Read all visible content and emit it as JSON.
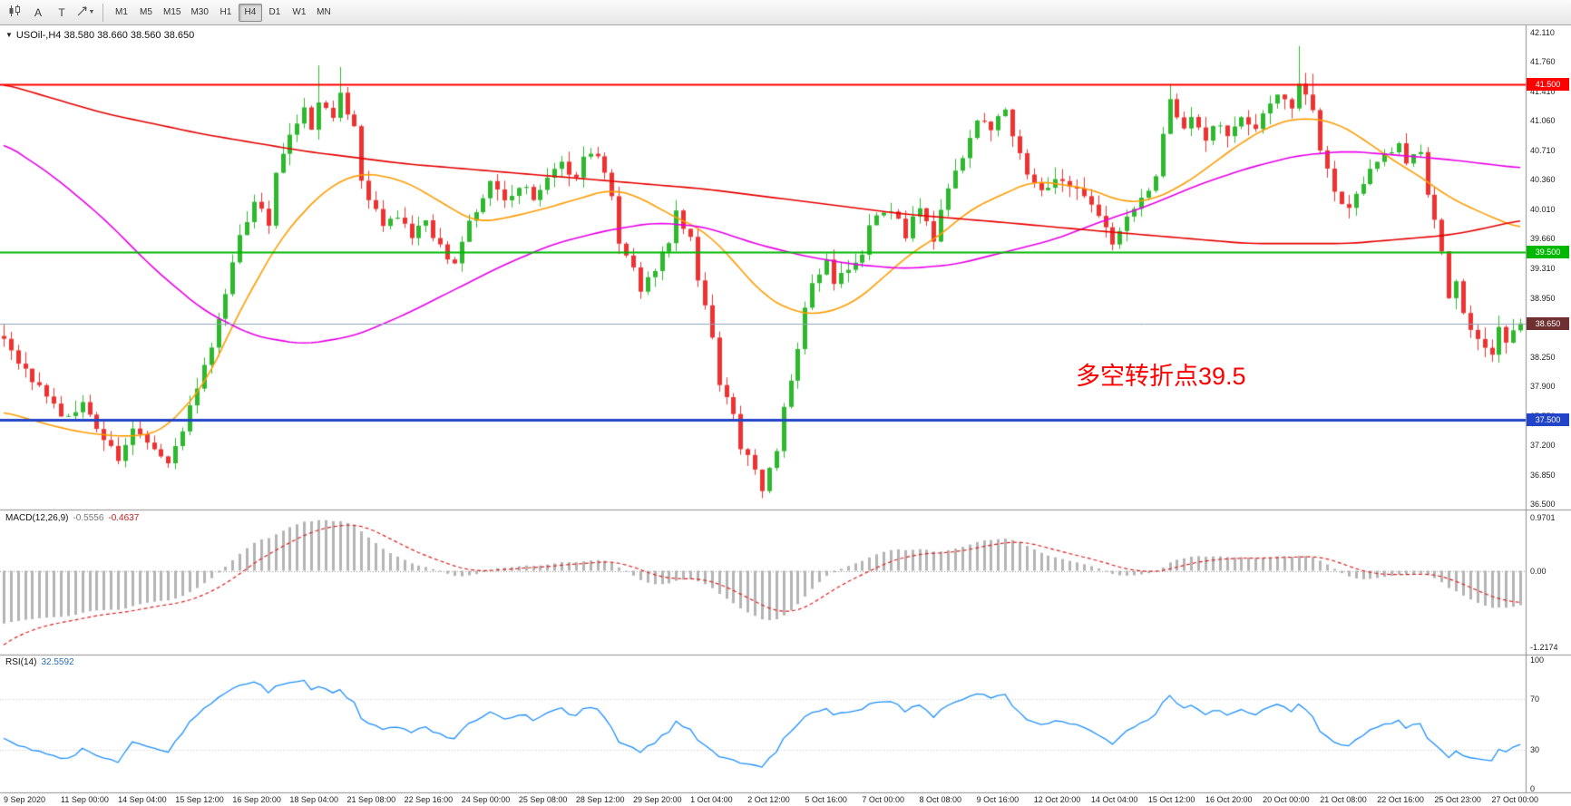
{
  "toolbar": {
    "tool_a_label": "A",
    "tool_t_label": "T",
    "timeframes": [
      "M1",
      "M5",
      "M15",
      "M30",
      "H1",
      "H4",
      "D1",
      "W1",
      "MN"
    ],
    "active_timeframe": "H4"
  },
  "main_chart": {
    "collapse_icon": "▼",
    "title": "USOil-,H4 38.580 38.660 38.560 38.650",
    "annotation": {
      "text": "多空转折点39.5",
      "color": "#ff0000"
    }
  },
  "price_axis": {
    "labels": [
      "42.110",
      "41.760",
      "41.410",
      "41.060",
      "40.710",
      "40.360",
      "40.010",
      "39.660",
      "39.310",
      "38.950",
      "38.600",
      "38.250",
      "37.900",
      "37.550",
      "37.200",
      "36.850",
      "36.500"
    ]
  },
  "macd_panel": {
    "label": "MACD(12,26,9)",
    "main_value": "-0.5556",
    "signal_value": "-0.4637",
    "axis_labels": [
      "0.9701",
      "0.00",
      "-1.2174"
    ]
  },
  "rsi_panel": {
    "label": "RSI(14)",
    "value": "32.5592",
    "axis_labels": [
      "100",
      "70",
      "30",
      "0"
    ]
  },
  "time_axis": {
    "labels": [
      "9 Sep 2020",
      "11 Sep 00:00",
      "14 Sep 04:00",
      "15 Sep 12:00",
      "16 Sep 20:00",
      "18 Sep 04:00",
      "21 Sep 08:00",
      "22 Sep 16:00",
      "24 Sep 00:00",
      "25 Sep 08:00",
      "28 Sep 12:00",
      "29 Sep 20:00",
      "1 Oct 04:00",
      "2 Oct 12:00",
      "5 Oct 16:00",
      "7 Oct 00:00",
      "8 Oct 08:00",
      "9 Oct 16:00",
      "12 Oct 20:00",
      "14 Oct 04:00",
      "15 Oct 12:00",
      "16 Oct 20:00",
      "20 Oct 00:00",
      "21 Oct 08:00",
      "22 Oct 16:00",
      "25 Oct 23:00",
      "27 Oct 00:00"
    ]
  },
  "chart_data": {
    "type": "candlestick",
    "symbol": "USOil-",
    "timeframe": "H4",
    "current_bar": {
      "open": 38.58,
      "high": 38.66,
      "low": 38.56,
      "close": 38.65
    },
    "y_axis": {
      "min": 36.5,
      "max": 42.11
    },
    "num_candles": 213,
    "colors": {
      "up": "#2eb82e",
      "down": "#ee3232"
    },
    "close_waypoints": [
      [
        0,
        38.45
      ],
      [
        3,
        38.1
      ],
      [
        6,
        37.8
      ],
      [
        8,
        37.5
      ],
      [
        11,
        37.7
      ],
      [
        13,
        37.35
      ],
      [
        16,
        37.05
      ],
      [
        18,
        37.4
      ],
      [
        21,
        37.15
      ],
      [
        23,
        36.95
      ],
      [
        25,
        37.4
      ],
      [
        27,
        37.9
      ],
      [
        29,
        38.4
      ],
      [
        31,
        39.0
      ],
      [
        33,
        39.7
      ],
      [
        35,
        40.1
      ],
      [
        37,
        39.85
      ],
      [
        38,
        40.4
      ],
      [
        40,
        40.9
      ],
      [
        42,
        41.2
      ],
      [
        43,
        41.0
      ],
      [
        44,
        41.3
      ],
      [
        46,
        41.1
      ],
      [
        47,
        41.35
      ],
      [
        49,
        40.95
      ],
      [
        50,
        40.3
      ],
      [
        52,
        40.0
      ],
      [
        53,
        39.85
      ],
      [
        55,
        39.95
      ],
      [
        57,
        39.7
      ],
      [
        59,
        39.85
      ],
      [
        61,
        39.55
      ],
      [
        63,
        39.35
      ],
      [
        65,
        39.85
      ],
      [
        67,
        40.1
      ],
      [
        68,
        40.35
      ],
      [
        70,
        40.1
      ],
      [
        72,
        40.3
      ],
      [
        74,
        40.15
      ],
      [
        76,
        40.35
      ],
      [
        78,
        40.55
      ],
      [
        80,
        40.35
      ],
      [
        81,
        40.6
      ],
      [
        83,
        40.65
      ],
      [
        85,
        40.2
      ],
      [
        86,
        39.6
      ],
      [
        88,
        39.3
      ],
      [
        89,
        39.0
      ],
      [
        91,
        39.3
      ],
      [
        93,
        39.65
      ],
      [
        94,
        40.0
      ],
      [
        96,
        39.65
      ],
      [
        97,
        39.2
      ],
      [
        99,
        38.5
      ],
      [
        100,
        37.95
      ],
      [
        102,
        37.55
      ],
      [
        103,
        37.2
      ],
      [
        105,
        36.9
      ],
      [
        106,
        36.7
      ],
      [
        108,
        37.15
      ],
      [
        109,
        37.7
      ],
      [
        111,
        38.3
      ],
      [
        112,
        38.85
      ],
      [
        113,
        39.1
      ],
      [
        115,
        39.4
      ],
      [
        116,
        39.15
      ],
      [
        118,
        39.3
      ],
      [
        120,
        39.5
      ],
      [
        121,
        39.85
      ],
      [
        123,
        40.0
      ],
      [
        125,
        39.9
      ],
      [
        126,
        39.7
      ],
      [
        128,
        40.05
      ],
      [
        130,
        39.65
      ],
      [
        131,
        40.0
      ],
      [
        133,
        40.45
      ],
      [
        135,
        40.85
      ],
      [
        136,
        41.1
      ],
      [
        138,
        40.95
      ],
      [
        140,
        41.2
      ],
      [
        141,
        40.85
      ],
      [
        143,
        40.45
      ],
      [
        145,
        40.25
      ],
      [
        147,
        40.35
      ],
      [
        149,
        40.3
      ],
      [
        151,
        40.2
      ],
      [
        153,
        39.9
      ],
      [
        155,
        39.6
      ],
      [
        156,
        39.75
      ],
      [
        158,
        40.0
      ],
      [
        160,
        40.25
      ],
      [
        161,
        40.45
      ],
      [
        163,
        41.3
      ],
      [
        165,
        41.0
      ],
      [
        166,
        41.15
      ],
      [
        168,
        40.85
      ],
      [
        170,
        41.05
      ],
      [
        171,
        40.9
      ],
      [
        173,
        41.1
      ],
      [
        175,
        41.0
      ],
      [
        176,
        41.1
      ],
      [
        178,
        41.4
      ],
      [
        180,
        41.2
      ],
      [
        181,
        41.5
      ],
      [
        183,
        41.2
      ],
      [
        184,
        40.7
      ],
      [
        186,
        40.2
      ],
      [
        188,
        40.0
      ],
      [
        190,
        40.3
      ],
      [
        191,
        40.5
      ],
      [
        193,
        40.65
      ],
      [
        195,
        40.75
      ],
      [
        196,
        40.6
      ],
      [
        198,
        40.7
      ],
      [
        199,
        40.2
      ],
      [
        201,
        39.5
      ],
      [
        202,
        39.0
      ],
      [
        203,
        39.15
      ],
      [
        204,
        38.8
      ],
      [
        205,
        38.55
      ],
      [
        207,
        38.35
      ],
      [
        208,
        38.3
      ],
      [
        209,
        38.6
      ],
      [
        210,
        38.45
      ],
      [
        211,
        38.55
      ],
      [
        212,
        38.65
      ]
    ],
    "candle_jitter": {
      "close": 0.1,
      "wick": 0.14,
      "seed": 7
    },
    "spikes": [
      {
        "index": 44,
        "high": 41.72
      },
      {
        "index": 47,
        "high": 41.7
      },
      {
        "index": 106,
        "low": 36.57
      },
      {
        "index": 163,
        "high": 41.5
      },
      {
        "index": 181,
        "high": 41.95
      },
      {
        "index": 183,
        "high": 41.62
      }
    ],
    "moving_averages": [
      {
        "name": "ma-fast-orange",
        "color": "#ff9c00",
        "points": [
          [
            0,
            37.6
          ],
          [
            6,
            37.45
          ],
          [
            11,
            37.35
          ],
          [
            17,
            37.3
          ],
          [
            22,
            37.35
          ],
          [
            28,
            37.9
          ],
          [
            33,
            38.8
          ],
          [
            39,
            39.7
          ],
          [
            45,
            40.25
          ],
          [
            50,
            40.45
          ],
          [
            56,
            40.35
          ],
          [
            61,
            40.1
          ],
          [
            66,
            39.85
          ],
          [
            70,
            39.9
          ],
          [
            75,
            40.0
          ],
          [
            81,
            40.15
          ],
          [
            85,
            40.25
          ],
          [
            89,
            40.15
          ],
          [
            93,
            39.95
          ],
          [
            98,
            39.75
          ],
          [
            102,
            39.4
          ],
          [
            106,
            39.0
          ],
          [
            110,
            38.8
          ],
          [
            114,
            38.75
          ],
          [
            119,
            38.9
          ],
          [
            123,
            39.2
          ],
          [
            127,
            39.5
          ],
          [
            131,
            39.7
          ],
          [
            135,
            40.0
          ],
          [
            140,
            40.2
          ],
          [
            144,
            40.35
          ],
          [
            152,
            40.25
          ],
          [
            156,
            40.1
          ],
          [
            160,
            40.1
          ],
          [
            165,
            40.3
          ],
          [
            169,
            40.55
          ],
          [
            173,
            40.8
          ],
          [
            177,
            41.0
          ],
          [
            181,
            41.1
          ],
          [
            186,
            41.05
          ],
          [
            190,
            40.85
          ],
          [
            194,
            40.6
          ],
          [
            198,
            40.4
          ],
          [
            202,
            40.15
          ],
          [
            207,
            39.95
          ],
          [
            212,
            39.78
          ]
        ]
      },
      {
        "name": "ma-mid-magenta",
        "color": "#e800e8",
        "points": [
          [
            0,
            40.8
          ],
          [
            7,
            40.4
          ],
          [
            14,
            39.9
          ],
          [
            21,
            39.3
          ],
          [
            28,
            38.8
          ],
          [
            35,
            38.5
          ],
          [
            42,
            38.4
          ],
          [
            49,
            38.5
          ],
          [
            56,
            38.75
          ],
          [
            63,
            39.05
          ],
          [
            70,
            39.35
          ],
          [
            77,
            39.6
          ],
          [
            84,
            39.75
          ],
          [
            91,
            39.85
          ],
          [
            98,
            39.8
          ],
          [
            105,
            39.6
          ],
          [
            112,
            39.45
          ],
          [
            119,
            39.35
          ],
          [
            126,
            39.3
          ],
          [
            133,
            39.35
          ],
          [
            140,
            39.5
          ],
          [
            147,
            39.65
          ],
          [
            153,
            39.85
          ],
          [
            160,
            40.05
          ],
          [
            167,
            40.3
          ],
          [
            174,
            40.5
          ],
          [
            181,
            40.65
          ],
          [
            188,
            40.7
          ],
          [
            195,
            40.65
          ],
          [
            202,
            40.6
          ],
          [
            212,
            40.5
          ]
        ]
      },
      {
        "name": "ma-slow-red",
        "color": "#e60000",
        "points": [
          [
            0,
            41.5
          ],
          [
            14,
            41.15
          ],
          [
            28,
            40.9
          ],
          [
            42,
            40.7
          ],
          [
            56,
            40.55
          ],
          [
            70,
            40.45
          ],
          [
            84,
            40.35
          ],
          [
            98,
            40.25
          ],
          [
            112,
            40.1
          ],
          [
            126,
            39.95
          ],
          [
            140,
            39.85
          ],
          [
            153,
            39.75
          ],
          [
            160,
            39.7
          ],
          [
            167,
            39.65
          ],
          [
            174,
            39.6
          ],
          [
            188,
            39.6
          ],
          [
            195,
            39.65
          ],
          [
            202,
            39.7
          ],
          [
            207,
            39.78
          ],
          [
            212,
            39.88
          ]
        ]
      }
    ],
    "hlines": [
      {
        "value": 41.5,
        "label": "41.500",
        "color": "#ff0000",
        "width": 2
      },
      {
        "value": 39.5,
        "label": "39.500",
        "color": "#00b800",
        "width": 2
      },
      {
        "value": 37.5,
        "label": "37.500",
        "color": "#2244c8",
        "width": 3
      }
    ],
    "current_price": {
      "value": 38.65,
      "label": "38.650",
      "line_color": "#8fa3b8",
      "badge_color": "#6e3030"
    },
    "indicators": [
      {
        "name": "MACD",
        "params": "12,26,9",
        "histogram_color": "#b4b4b4",
        "signal_color": "#e02020",
        "seed": {
          "ema12_offset": 0.4,
          "ema26_offset": 1.3,
          "signal_init_offset": -0.35
        }
      },
      {
        "name": "RSI",
        "params": "14",
        "line_color": "#1e90ff",
        "levels": [
          70,
          30
        ],
        "level_color": "#c8c8c8",
        "seed": {
          "avg_gain": 0.055,
          "avg_loss": 0.085
        }
      }
    ]
  }
}
